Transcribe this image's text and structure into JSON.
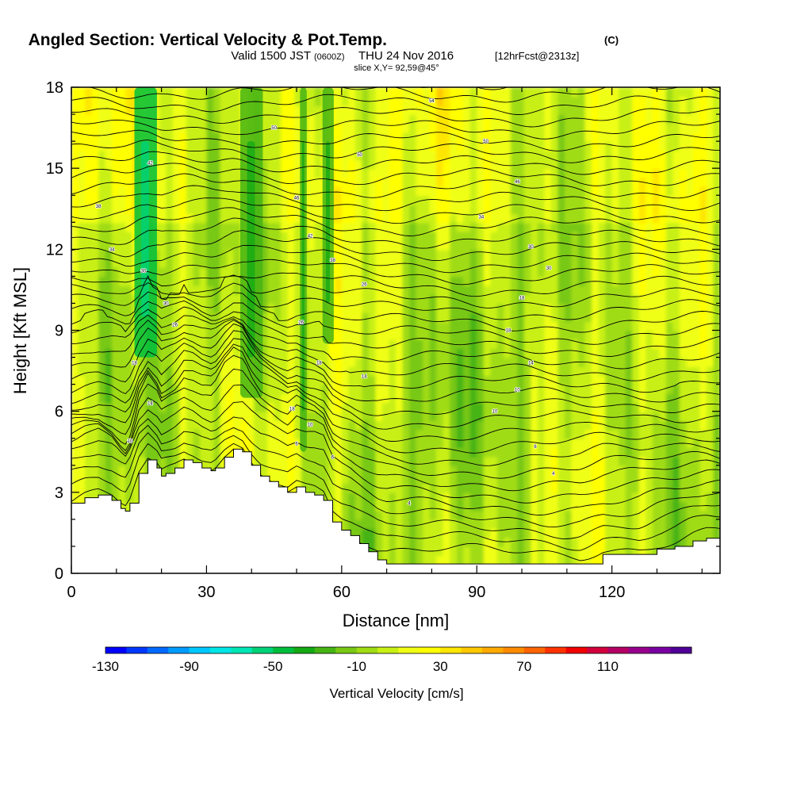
{
  "header": {
    "title_main": "Angled Section: Vertical Velocity & Pot.Temp.",
    "title_unit": "(C)",
    "valid_a": "Valid 1500 JST",
    "valid_z": "(0600Z)",
    "valid_b": "THU 24 Nov 2016",
    "valid_fcst": "[12hrFcst@2313z]",
    "slice": "slice X,Y= 92,59@45°"
  },
  "chart_data": {
    "type": "heatmap",
    "xlabel": "Distance [nm]",
    "ylabel": "Height [Kft MSL]",
    "xlim": [
      0,
      144
    ],
    "ylim": [
      0,
      18
    ],
    "x_ticks": [
      0,
      30,
      60,
      90,
      120
    ],
    "x_tick_labels": [
      "0",
      "30",
      "60",
      "90",
      "120"
    ],
    "y_ticks": [
      0,
      3,
      6,
      9,
      12,
      15,
      18
    ],
    "y_tick_labels": [
      "0",
      "3",
      "6",
      "9",
      "12",
      "15",
      "18"
    ],
    "field_range_note": "shaded vertical velocity roughly -50 to +30 cm/s",
    "colorbar": {
      "label": "Vertical Velocity [cm/s]",
      "min": -130,
      "max": 150,
      "step": 10,
      "tick_values": [
        -130,
        -90,
        -50,
        -10,
        30,
        70,
        110
      ],
      "tick_labels": [
        "-130",
        "-90",
        "-50",
        "-10",
        "30",
        "70",
        "110"
      ],
      "colors": [
        "#0000ff",
        "#0037ff",
        "#0069ff",
        "#009bff",
        "#00c8ff",
        "#00e6e6",
        "#00e6b4",
        "#00d278",
        "#00be3c",
        "#14aa14",
        "#46b414",
        "#78c814",
        "#a0dc14",
        "#c8f014",
        "#f0ff14",
        "#ffff00",
        "#ffe600",
        "#ffc800",
        "#ffaa00",
        "#ff8c00",
        "#ff6400",
        "#ff3200",
        "#f00000",
        "#d2003c",
        "#b40064",
        "#96008c",
        "#7800a0",
        "#500096"
      ]
    },
    "terrain_profile": {
      "x": [
        0,
        3,
        6,
        9,
        11,
        12,
        13,
        15,
        17,
        19,
        20,
        21,
        23,
        25,
        27,
        29,
        31,
        32,
        34,
        36,
        38,
        40,
        42,
        44,
        46,
        48,
        50,
        52,
        54,
        56,
        58,
        60,
        62,
        64,
        66,
        68,
        70,
        80,
        90,
        100,
        110,
        113,
        118,
        122,
        126,
        130,
        134,
        138,
        141,
        144
      ],
      "height": [
        2.6,
        2.8,
        2.9,
        2.7,
        2.4,
        2.3,
        2.6,
        3.7,
        4.2,
        3.9,
        3.6,
        3.7,
        3.9,
        4.2,
        4.1,
        3.9,
        3.8,
        3.9,
        4.3,
        4.6,
        4.5,
        4.0,
        3.6,
        3.4,
        3.2,
        3.0,
        3.2,
        3.0,
        2.9,
        2.7,
        1.9,
        1.6,
        1.4,
        1.1,
        0.8,
        0.5,
        0.35,
        0.35,
        0.35,
        0.35,
        0.35,
        0.35,
        0.7,
        0.7,
        0.7,
        0.9,
        1.0,
        1.2,
        1.3,
        1.3
      ]
    },
    "updraft_bands": [
      {
        "x": 16.5,
        "width": 5,
        "w": -45,
        "bottom": 8.0
      },
      {
        "x": 40,
        "width": 5,
        "w": -25,
        "bottom": 6.5
      },
      {
        "x": 51.5,
        "width": 1.5,
        "w": -22,
        "bottom": 4.5
      },
      {
        "x": 57,
        "width": 2.5,
        "w": -28,
        "bottom": 8.5
      }
    ],
    "isentrope_labels": [
      {
        "x": 6,
        "y": 13.6,
        "text": "38"
      },
      {
        "x": 9,
        "y": 12.0,
        "text": "34"
      },
      {
        "x": 16,
        "y": 11.2,
        "text": "30"
      },
      {
        "x": 17.5,
        "y": 15.2,
        "text": "42"
      },
      {
        "x": 21,
        "y": 10.0,
        "text": "30"
      },
      {
        "x": 23,
        "y": 9.2,
        "text": "26"
      },
      {
        "x": 14,
        "y": 7.8,
        "text": "18"
      },
      {
        "x": 17.5,
        "y": 6.3,
        "text": "14"
      },
      {
        "x": 13,
        "y": 4.9,
        "text": "10"
      },
      {
        "x": 45,
        "y": 16.5,
        "text": "50"
      },
      {
        "x": 50,
        "y": 13.9,
        "text": "46"
      },
      {
        "x": 53,
        "y": 12.5,
        "text": "42"
      },
      {
        "x": 58,
        "y": 11.6,
        "text": "38"
      },
      {
        "x": 51,
        "y": 9.3,
        "text": "26"
      },
      {
        "x": 55,
        "y": 7.8,
        "text": "18"
      },
      {
        "x": 49,
        "y": 6.1,
        "text": "18"
      },
      {
        "x": 53,
        "y": 5.5,
        "text": "10"
      },
      {
        "x": 50,
        "y": 4.8,
        "text": "6"
      },
      {
        "x": 58,
        "y": 4.3,
        "text": "6"
      },
      {
        "x": 80,
        "y": 17.5,
        "text": "54"
      },
      {
        "x": 64,
        "y": 15.5,
        "text": "50"
      },
      {
        "x": 92,
        "y": 16.0,
        "text": "50"
      },
      {
        "x": 99,
        "y": 14.5,
        "text": "46"
      },
      {
        "x": 91,
        "y": 13.2,
        "text": "34"
      },
      {
        "x": 102,
        "y": 12.1,
        "text": "30"
      },
      {
        "x": 106,
        "y": 11.3,
        "text": "30"
      },
      {
        "x": 65,
        "y": 10.7,
        "text": "26"
      },
      {
        "x": 100,
        "y": 10.2,
        "text": "18"
      },
      {
        "x": 97,
        "y": 9.0,
        "text": "18"
      },
      {
        "x": 102,
        "y": 7.8,
        "text": "14"
      },
      {
        "x": 65,
        "y": 7.3,
        "text": "14"
      },
      {
        "x": 99,
        "y": 6.8,
        "text": "10"
      },
      {
        "x": 94,
        "y": 6.0,
        "text": "10"
      },
      {
        "x": 103,
        "y": 4.7,
        "text": "6"
      },
      {
        "x": 107,
        "y": 3.7,
        "text": "4"
      },
      {
        "x": 75,
        "y": 2.6,
        "text": "4"
      }
    ]
  }
}
